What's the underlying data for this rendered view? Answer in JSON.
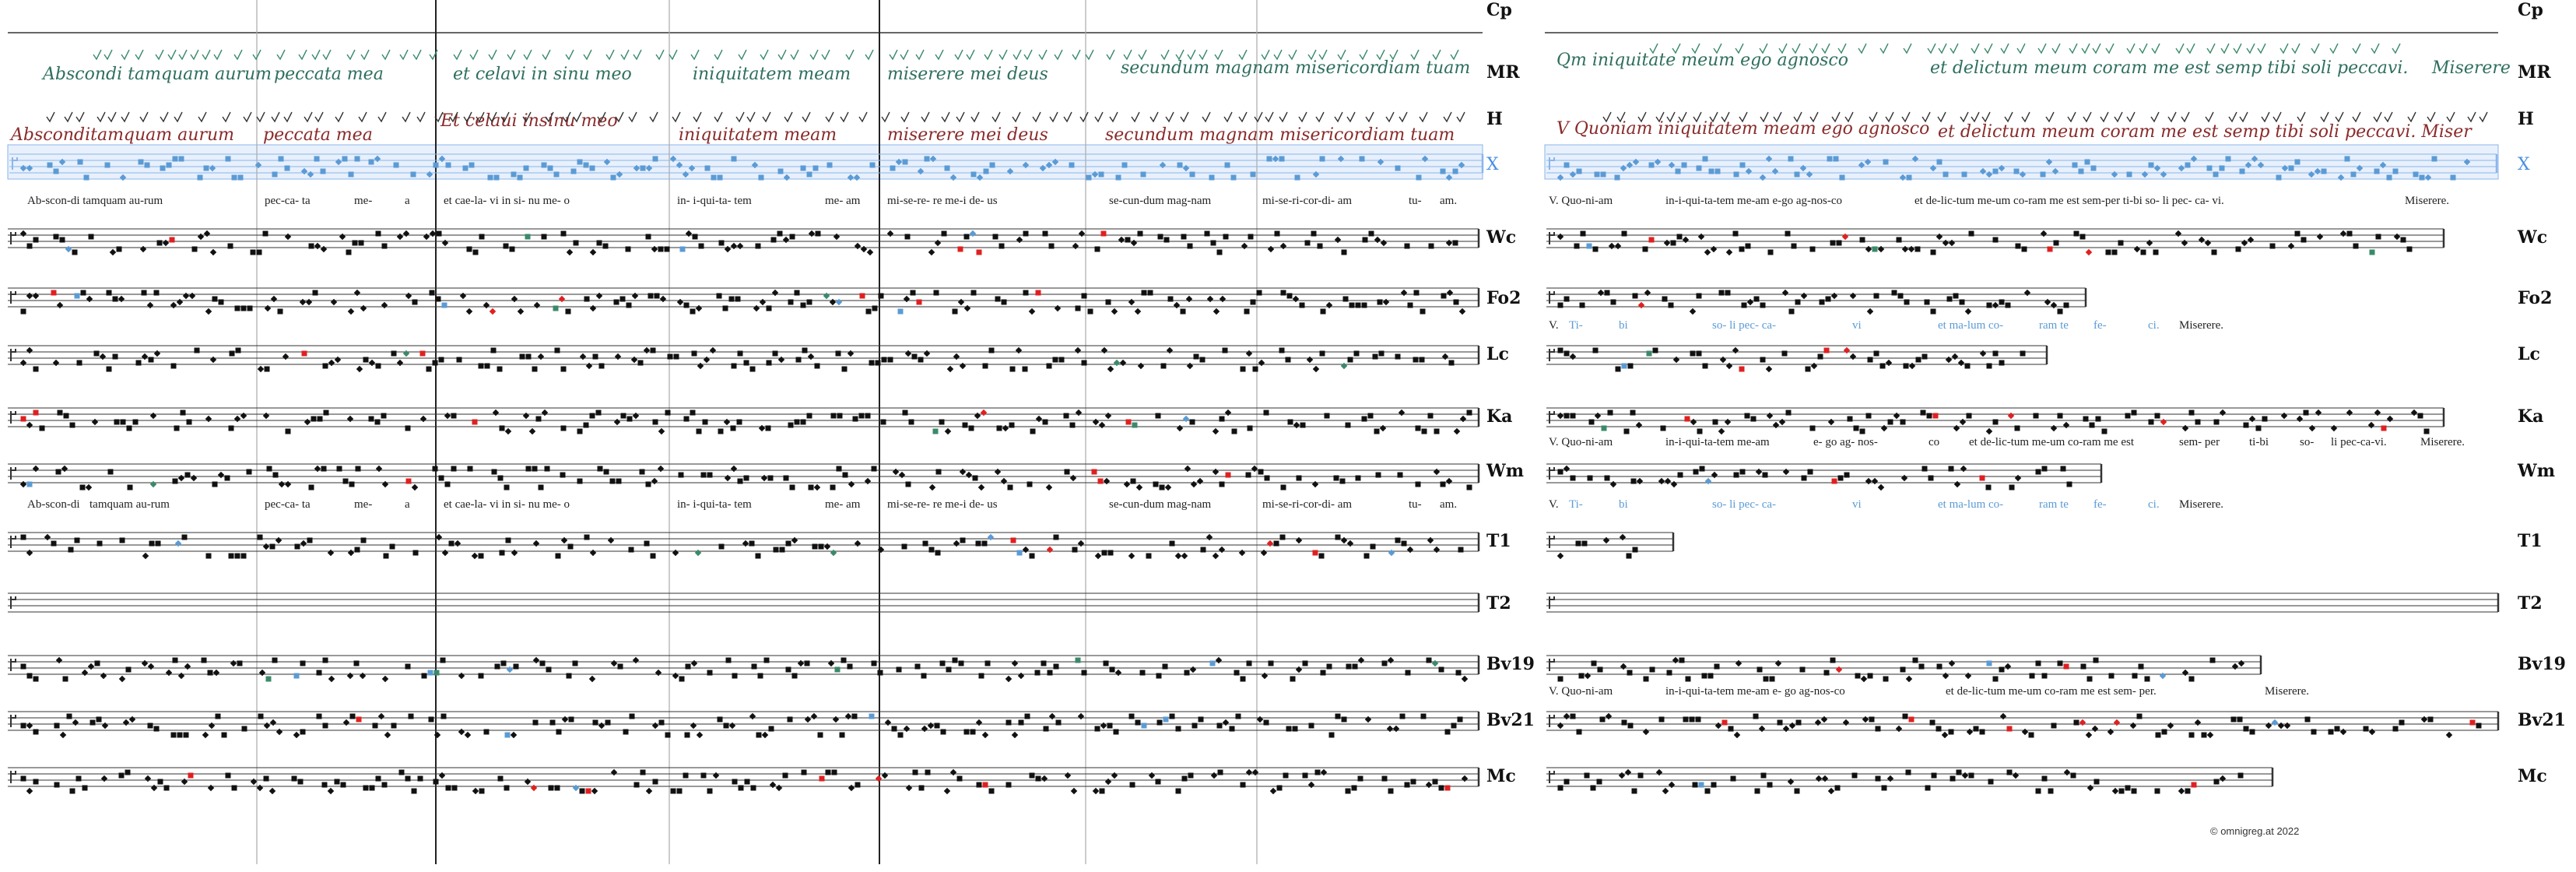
{
  "row_labels": [
    "Cp",
    "MR",
    "H",
    "X",
    "Wc",
    "Fo2",
    "Lc",
    "Ka",
    "Wm",
    "T1",
    "T2",
    "Bv19",
    "Bv21",
    "Mc"
  ],
  "manuscript_lines": {
    "left_mr": [
      "Abscondi tamquam aurum",
      "peccata mea",
      "et celavi in sinu meo",
      "iniquitatem meam",
      "miserere mei deus",
      "secundum magnam misericordiam tuam"
    ],
    "left_h": [
      "Absconditamquam aurum",
      "peccata mea",
      "Et celaui insinu meo",
      "iniquitatem meam",
      "miserere mei deus",
      "secundum magnam misericordiam tuam"
    ],
    "right_mr": [
      "Qm iniquitate meum ego agnosco",
      "et delictum meum coram me est semp tibi soli peccavi.",
      "Miserere"
    ],
    "right_h": [
      "V Quoniam iniquitatem meam ego agnosco",
      "et delictum meum coram me est semp tibi soli peccavi. Miser"
    ]
  },
  "lyrics": {
    "x_left": [
      "Ab-scon-di tamquam au-rum",
      "pec-ca- ta",
      "me-",
      "a",
      "et cae-la- vi in si- nu me- o",
      "in- i-qui-ta- tem",
      "me- am",
      "mi-se-re- re me-i de- us",
      "se-cun-dum mag-nam",
      "mi-se-ri-cor-di- am",
      "tu-",
      "am."
    ],
    "x_right": [
      "V. Quo-ni-am",
      "in-i-qui-ta-tem me-am e-go ag-nos-co",
      "et de-lic-tum me-um co-ram me est sem-per ti-bi so- li pec- ca- vi.",
      "Miserere."
    ],
    "fo2_right": [
      "V.",
      "Ti-",
      "bi",
      "so- li pec- ca-",
      "vi",
      "et ma-lum co-",
      "ram te",
      "fe-",
      "ci.",
      "Miserere."
    ],
    "ka_right": [
      "V. Quo-ni-am",
      "in-i-qui-ta-tem me-am",
      "e- go ag- nos-",
      "co",
      "et de-lic-tum me-um co-ram me est",
      "sem- per",
      "ti-bi",
      "so-",
      "li pec-ca-vi.",
      "Miserere."
    ],
    "wm_left": [
      "Ab-scon-di",
      "tamquam au-rum",
      "pec-ca- ta",
      "me-",
      "a",
      "et cae-la- vi in si- nu me- o",
      "in- i-qui-ta- tem",
      "me- am",
      "mi-se-re- re me-i de- us",
      "se-cun-dum mag-nam",
      "mi-se-ri-cor-di- am",
      "tu-",
      "am."
    ],
    "wm_right": [
      "V.",
      "Ti-",
      "bi",
      "so- li pec- ca-",
      "vi",
      "et ma-lum co-",
      "ram te",
      "fe-",
      "ci.",
      "Miserere."
    ],
    "bv19_right": [
      "V. Quo-ni-am",
      "in-i-qui-ta-tem me-am e- go ag-nos-co",
      "et de-lic-tum me-um co-ram me est sem- per.",
      "Miserere."
    ]
  },
  "copyright": "© omnigreg.at   2022",
  "colors": {
    "neume": "#111111",
    "red_variant": "#e02020",
    "green_variant": "#3a8a6a",
    "blue_variant": "#5b9bd5",
    "x_staff": "#8ab6ea",
    "x_band": "#e8f0fc",
    "staff_line": "#333333",
    "divider": "#aaaaaa"
  }
}
